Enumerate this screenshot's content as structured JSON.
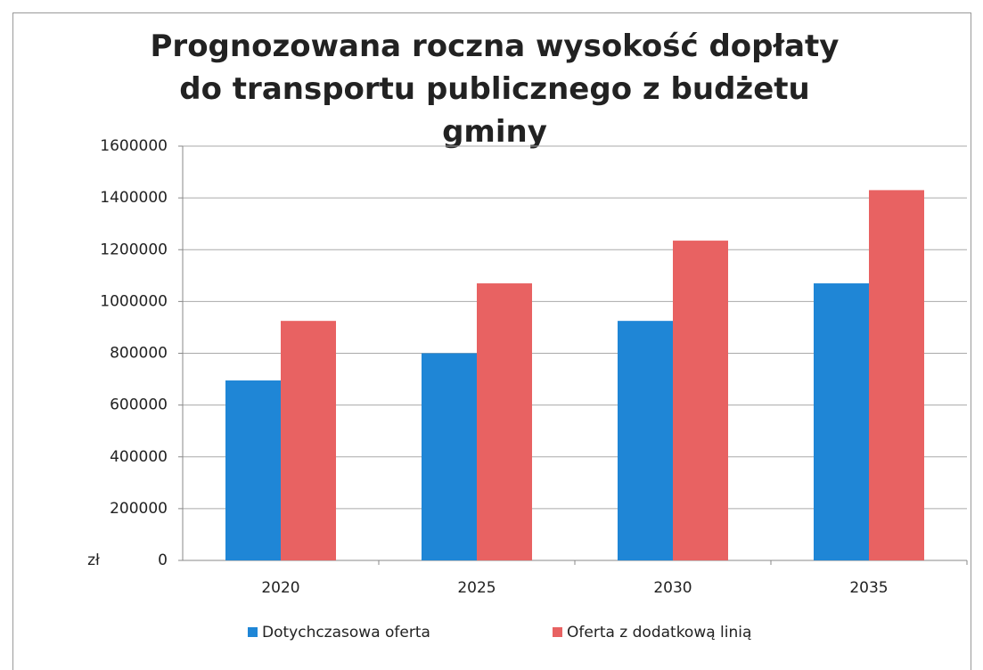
{
  "chart_data": {
    "type": "bar",
    "title": "Prognozowana roczna wysokość dopłaty do transportu publicznego z budżetu  gminy",
    "y_label": "zł",
    "categories": [
      "2020",
      "2025",
      "2030",
      "2035"
    ],
    "series": [
      {
        "name": "Dotychczasowa oferta",
        "color": "#1f86d6",
        "values": [
          695000,
          800000,
          925000,
          1070000
        ]
      },
      {
        "name": "Oferta z dodatkową linią",
        "color": "#e86262",
        "values": [
          925000,
          1070000,
          1235000,
          1430000
        ]
      }
    ],
    "ylim": [
      0,
      1600000
    ],
    "yticks": [
      0,
      200000,
      400000,
      600000,
      800000,
      1000000,
      1200000,
      1400000,
      1600000
    ],
    "grid": true,
    "legend": "bottom"
  }
}
